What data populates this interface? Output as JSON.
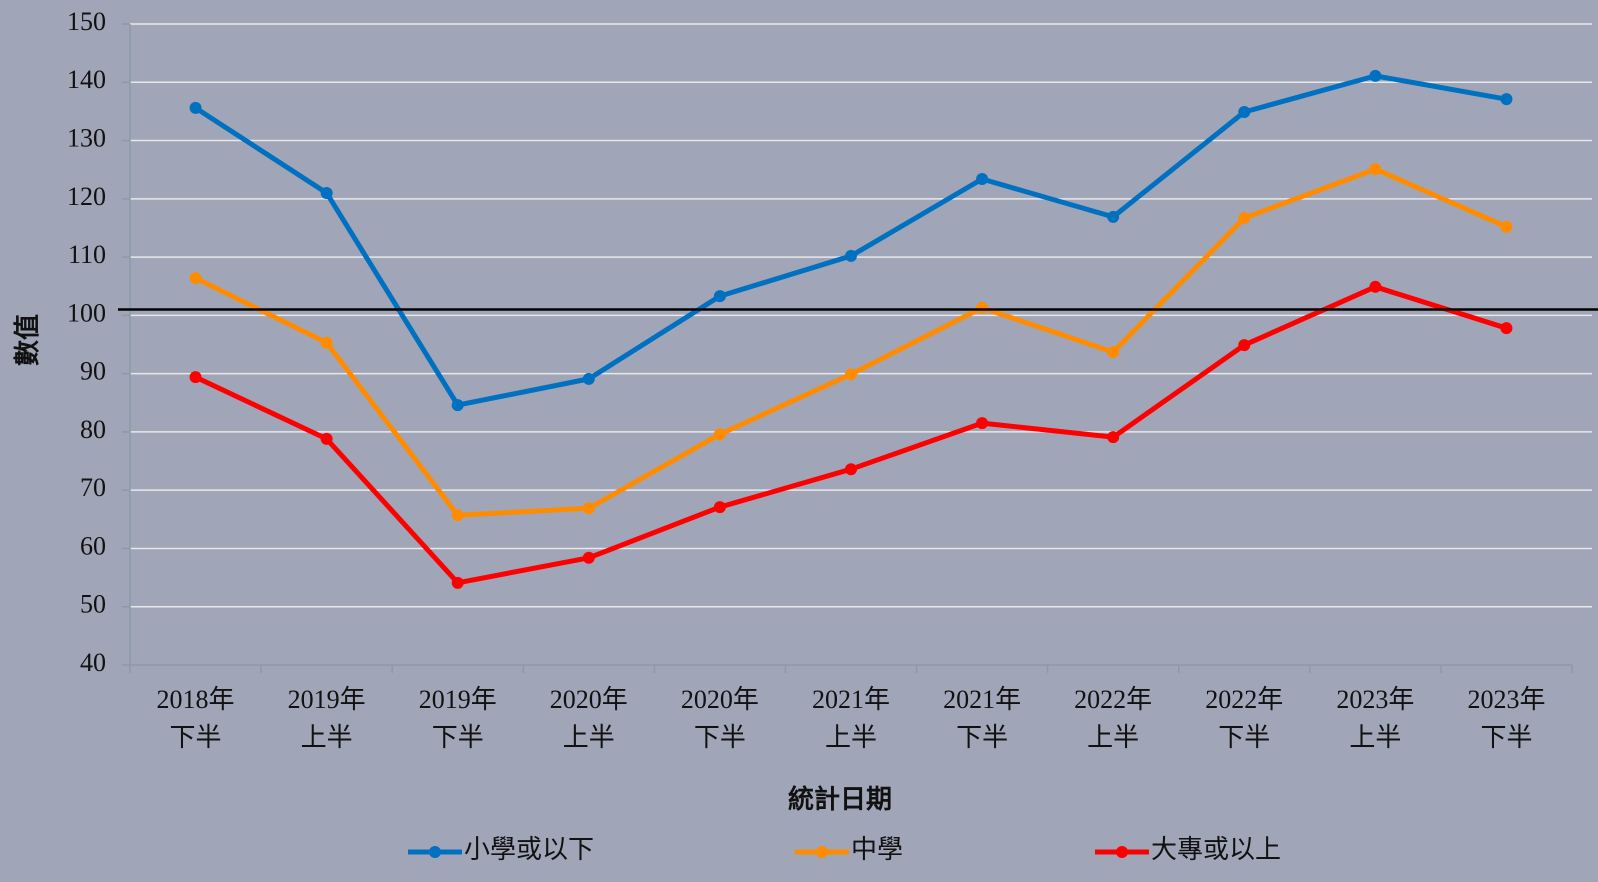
{
  "chart_data": {
    "type": "line",
    "x_label": "統計日期",
    "y_label": "數值",
    "categories": [
      [
        "2018年",
        "下半"
      ],
      [
        "2019年",
        "上半"
      ],
      [
        "2019年",
        "下半"
      ],
      [
        "2020年",
        "上半"
      ],
      [
        "2020年",
        "下半"
      ],
      [
        "2021年",
        "上半"
      ],
      [
        "2021年",
        "下半"
      ],
      [
        "2022年",
        "上半"
      ],
      [
        "2022年",
        "下半"
      ],
      [
        "2023年",
        "上半"
      ],
      [
        "2023年",
        "下半"
      ]
    ],
    "series": [
      {
        "name": "小學或以下",
        "color": "#0070c0",
        "values": [
          135.6,
          121,
          84.6,
          89.1,
          103.3,
          110.2,
          123.4,
          116.9,
          134.9,
          141.1,
          137.1
        ]
      },
      {
        "name": "中學",
        "color": "#ff8c00",
        "values": [
          106.4,
          95.3,
          65.7,
          66.9,
          79.6,
          89.9,
          101.3,
          93.7,
          116.7,
          125.1,
          115.2
        ]
      },
      {
        "name": "大專或以上",
        "color": "#ff0000",
        "values": [
          89.4,
          78.8,
          54.1,
          58.4,
          67.1,
          73.6,
          81.5,
          79.1,
          94.9,
          104.9,
          97.8
        ]
      }
    ],
    "reference_line": 101,
    "ylim": [
      40,
      150
    ],
    "yticks": [
      40,
      50,
      60,
      70,
      80,
      90,
      100,
      110,
      120,
      130,
      140,
      150
    ],
    "grid": true
  }
}
